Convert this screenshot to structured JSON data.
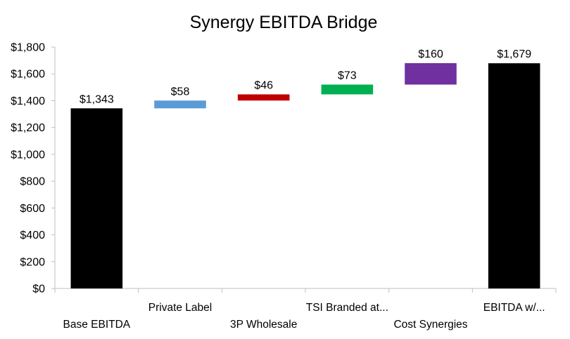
{
  "chart_data": {
    "type": "bar",
    "subtype": "waterfall",
    "title": "Synergy EBITDA Bridge",
    "xlabel": "",
    "ylabel": "",
    "ylim": [
      0,
      1800
    ],
    "y_ticks": [
      "$0",
      "$200",
      "$400",
      "$600",
      "$800",
      "$1,000",
      "$1,200",
      "$1,400",
      "$1,600",
      "$1,800"
    ],
    "grid": false,
    "legend": "none",
    "categories": [
      "Base EBITDA",
      "Private Label",
      "3P Wholesale",
      "TSI Branded at...",
      "Cost Synergies",
      "EBITDA w/..."
    ],
    "bars": [
      {
        "kind": "total",
        "base": 0,
        "value": 1343,
        "label": "$1,343",
        "color": "#000000"
      },
      {
        "kind": "delta",
        "base": 1343,
        "value": 58,
        "label": "$58",
        "color": "#5B9BD5"
      },
      {
        "kind": "delta",
        "base": 1401,
        "value": 46,
        "label": "$46",
        "color": "#C00000"
      },
      {
        "kind": "delta",
        "base": 1447,
        "value": 73,
        "label": "$73",
        "color": "#00B050"
      },
      {
        "kind": "delta",
        "base": 1520,
        "value": 160,
        "label": "$160",
        "color": "#7030A0"
      },
      {
        "kind": "total",
        "base": 0,
        "value": 1679,
        "label": "$1,679",
        "color": "#000000"
      }
    ]
  }
}
